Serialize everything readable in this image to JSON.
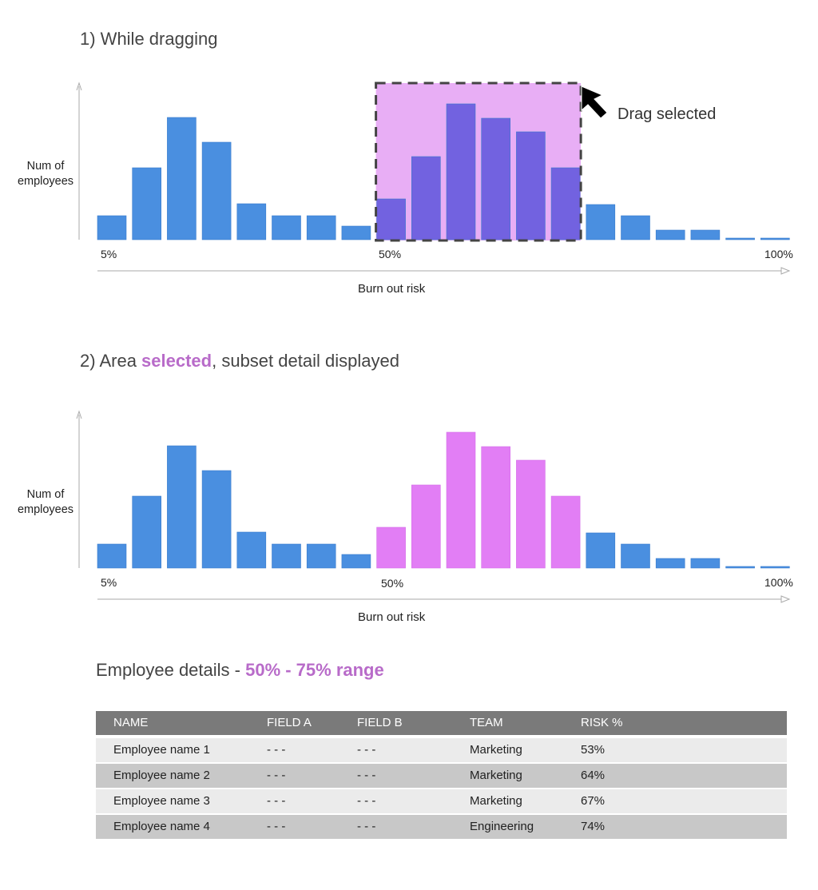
{
  "section1": {
    "title": "1) While dragging",
    "annotation": "Drag selected"
  },
  "section2": {
    "title_prefix": "2) Area ",
    "title_highlight": "selected",
    "title_suffix": ", subset detail displayed"
  },
  "chart_common": {
    "ylabel_line1": "Num of",
    "ylabel_line2": "employees",
    "xlabel": "Burn out risk",
    "ticks": [
      "5%",
      "50%",
      "100%"
    ]
  },
  "colors": {
    "bar": "#4a8fe0",
    "bar_in_drag": "#7262e0",
    "drag_overlay": "#e8aef5",
    "bar_selected": "#e27ef5",
    "accent": "#b86bc9"
  },
  "chart_data": [
    {
      "type": "bar",
      "title": "While dragging",
      "xlabel": "Burn out risk",
      "ylabel": "Num of employees",
      "values": [
        30,
        90,
        153,
        122,
        45,
        30,
        30,
        17,
        51,
        104,
        170,
        152,
        135,
        90,
        44,
        30,
        12,
        12,
        2,
        2
      ],
      "selected_range_bins": [
        8,
        13
      ],
      "selection_state": "dragging",
      "ylim": [
        0,
        195
      ]
    },
    {
      "type": "bar",
      "title": "Area selected",
      "xlabel": "Burn out risk",
      "ylabel": "Num of employees",
      "values": [
        30,
        90,
        153,
        122,
        45,
        30,
        30,
        17,
        51,
        104,
        170,
        152,
        135,
        90,
        44,
        30,
        12,
        12,
        2,
        2
      ],
      "selected_range_bins": [
        8,
        13
      ],
      "selection_state": "selected",
      "ylim": [
        0,
        195
      ]
    }
  ],
  "details": {
    "title_prefix": "Employee details - ",
    "title_range": "50% - 75% range"
  },
  "table": {
    "headers": [
      "NAME",
      "FIELD A",
      "FIELD B",
      "TEAM",
      "RISK %"
    ],
    "rows": [
      [
        "Employee name 1",
        "- - -",
        "- - -",
        "Marketing",
        "53%"
      ],
      [
        "Employee name 2",
        "- - -",
        "- - -",
        "Marketing",
        "64%"
      ],
      [
        "Employee name 3",
        "- - -",
        "- - -",
        "Marketing",
        "67%"
      ],
      [
        "Employee name 4",
        "- - -",
        "- - -",
        "Engineering",
        "74%"
      ]
    ]
  }
}
